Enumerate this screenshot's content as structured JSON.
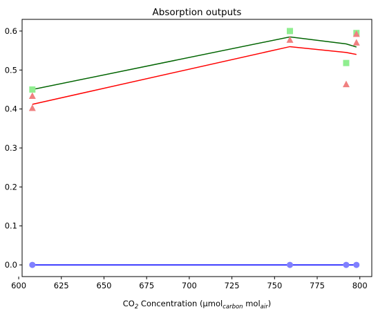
{
  "chart_data": {
    "type": "line",
    "title": "Absorption outputs",
    "xlabel": {
      "prefix": "CO",
      "prefix_sub": "2",
      "middle": " Concentration (μmol",
      "middle_sub": "carbon",
      "middle2": " mol",
      "end_sub": "air",
      "suffix": ")"
    },
    "ylabel": "",
    "xlim": [
      602,
      807
    ],
    "ylim": [
      -0.03,
      0.63
    ],
    "xticks": [
      600,
      625,
      650,
      675,
      700,
      725,
      750,
      775,
      800
    ],
    "yticks": [
      0.0,
      0.1,
      0.2,
      0.3,
      0.4,
      0.5,
      0.6
    ],
    "grid": false,
    "legend": "none",
    "lines": [
      {
        "color": "#006400",
        "x": [
          608,
          759,
          792,
          798
        ],
        "y": [
          0.45,
          0.585,
          0.567,
          0.559
        ]
      },
      {
        "color": "#ff0000",
        "x": [
          608,
          759,
          792,
          798
        ],
        "y": [
          0.412,
          0.56,
          0.545,
          0.54
        ]
      },
      {
        "color": "#0000ff",
        "x": [
          608,
          759,
          792,
          798
        ],
        "y": [
          0.0,
          0.0,
          0.0,
          0.0
        ]
      }
    ],
    "points": [
      {
        "marker": "square",
        "color": "#90ee90",
        "x": [
          608,
          759,
          792,
          798
        ],
        "y": [
          0.45,
          0.6,
          0.518,
          0.595
        ]
      },
      {
        "marker": "triangle",
        "color": "#f08080",
        "x": [
          608,
          608,
          759,
          792,
          798,
          798
        ],
        "y": [
          0.433,
          0.402,
          0.577,
          0.463,
          0.592,
          0.57
        ]
      },
      {
        "marker": "circle",
        "color": "#8080ff",
        "x": [
          608,
          759,
          792,
          798
        ],
        "y": [
          0.0,
          0.0,
          0.0,
          0.0
        ]
      }
    ]
  }
}
